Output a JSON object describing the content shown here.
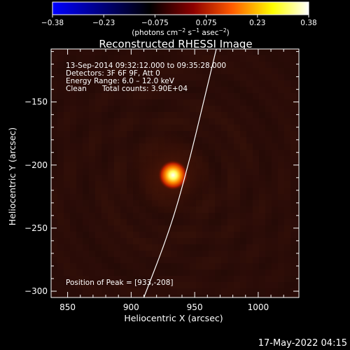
{
  "colorbar": {
    "ticks": [
      "−0.38",
      "−0.23",
      "−0.075",
      "0.075",
      "0.23",
      "0.38"
    ],
    "units_prefix": "(photons cm",
    "units_exp1": "−2",
    "units_mid": " s",
    "units_exp2": "−1",
    "units_mid2": " asec",
    "units_exp3": "−2",
    "units_suffix": ")",
    "colors": [
      "#0000ff",
      "#000000",
      "#8c0000",
      "#ff5a00",
      "#ffff00",
      "#ffffff"
    ]
  },
  "annotation": {
    "time_range": "13-Sep-2014 09:32:12.000 to 09:35:28.000",
    "detectors": "Detectors: 3F 6F 9F, Att 0",
    "energy": "Energy Range: 6.0 – 12.0 keV",
    "clean_label": "Clean",
    "total_counts": "Total counts: 3.90E+04",
    "peak": "Position of Peak = [933,-208]"
  },
  "footer": {
    "timestamp": "17-May-2022 04:15"
  },
  "chart_data": {
    "type": "heatmap",
    "title": "Reconstructed RHESSI Image",
    "xlabel": "Heliocentric X (arcsec)",
    "ylabel": "Heliocentric Y (arcsec)",
    "xlim": [
      837,
      1032
    ],
    "ylim": [
      -305,
      -108
    ],
    "xticks": [
      850,
      900,
      950,
      1000
    ],
    "yticks": [
      -150,
      -200,
      -250,
      -300
    ],
    "xtick_labels": [
      "850",
      "900",
      "950",
      "1000"
    ],
    "ytick_labels": [
      "−150",
      "−200",
      "−250",
      "−300"
    ],
    "colorbar_range": [
      -0.38,
      0.38
    ],
    "peak": {
      "x": 933,
      "y": -208,
      "value": 0.38
    },
    "limb_curve": [
      [
        967,
        -108
      ],
      [
        957,
        -150
      ],
      [
        945,
        -200
      ],
      [
        931,
        -250
      ],
      [
        910,
        -305
      ]
    ]
  }
}
